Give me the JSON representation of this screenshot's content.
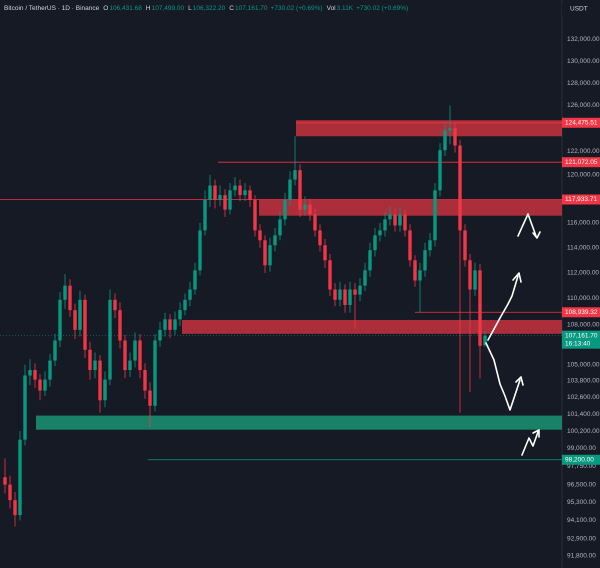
{
  "chart_data": {
    "type": "candlestick",
    "header": {
      "symbol": "Bitcoin / TetherUS · 1D · Binance",
      "ohlc": [
        [
          "O",
          "106,431.68"
        ],
        [
          "H",
          "107,499.00"
        ],
        [
          "L",
          "106,322.20"
        ],
        [
          "C",
          "107,161.70"
        ]
      ],
      "change": "+730.02 (+0.69%)",
      "volume_label": "Vol",
      "volume": "3.11K"
    },
    "currency": "USDT",
    "log_scale": true,
    "up_color": "#089981",
    "down_color": "#f23645",
    "ylim": [
      91000,
      134000
    ],
    "yticks": [
      {
        "value": 132000,
        "label": "132,000.00"
      },
      {
        "value": 130000,
        "label": "130,000.00"
      },
      {
        "value": 128000,
        "label": "128,000.00"
      },
      {
        "value": 126000,
        "label": "126,000.00"
      },
      {
        "value": 122000,
        "label": "122,000.00"
      },
      {
        "value": 120000,
        "label": "120,000.00"
      },
      {
        "value": 116000,
        "label": "116,000.00"
      },
      {
        "value": 114000,
        "label": "114,000.00"
      },
      {
        "value": 112000,
        "label": "112,000.00"
      },
      {
        "value": 110000,
        "label": "110,000.00"
      },
      {
        "value": 108000,
        "label": "108,000.00"
      },
      {
        "value": 105000,
        "label": "105,000.00"
      },
      {
        "value": 103800,
        "label": "103,800.00"
      },
      {
        "value": 102600,
        "label": "102,600.00"
      },
      {
        "value": 101400,
        "label": "101,400.00"
      },
      {
        "value": 100200,
        "label": "100,200.00"
      },
      {
        "value": 99000,
        "label": "99,000.00"
      },
      {
        "value": 97750,
        "label": "97,750.00"
      },
      {
        "value": 96500,
        "label": "96,500.00"
      },
      {
        "value": 95300,
        "label": "95,300.00"
      },
      {
        "value": 94100,
        "label": "94,100.00"
      },
      {
        "value": 92900,
        "label": "92,900.00"
      },
      {
        "value": 91800,
        "label": "91,800.00"
      }
    ],
    "zones": [
      {
        "low": 123300,
        "high": 124700,
        "color": "#b8303c"
      },
      {
        "low": 116600,
        "high": 117900,
        "color": "#b8303c"
      },
      {
        "low": 107300,
        "high": 108350,
        "color": "#b8303c"
      },
      {
        "low": 100300,
        "high": 101300,
        "color": "#1b8a6f"
      }
    ],
    "levels": [
      {
        "value": 124475.51,
        "label": "124,475.51",
        "color": "#f23645"
      },
      {
        "value": 121072.05,
        "label": "121,072.05",
        "color": "#f23645"
      },
      {
        "value": 117933.71,
        "label": "117,933.71",
        "color": "#f23645"
      },
      {
        "value": 108939.32,
        "label": "108,939.32",
        "color": "#f23645"
      },
      {
        "value": 107161.7,
        "label": "107,161.70",
        "color": "#089981",
        "countdown": "16:13:40"
      },
      {
        "value": 98200,
        "label": "98,200.00",
        "color": "#089981"
      }
    ],
    "candles": [
      [
        97000,
        98300,
        95900,
        96500
      ],
      [
        96500,
        97100,
        94900,
        95450
      ],
      [
        95450,
        96000,
        93700,
        94450
      ],
      [
        94450,
        100200,
        94100,
        99600
      ],
      [
        99600,
        105000,
        99200,
        104200
      ],
      [
        104200,
        105400,
        103500,
        104600
      ],
      [
        104600,
        105100,
        103300,
        103900
      ],
      [
        103900,
        104300,
        102400,
        103100
      ],
      [
        103100,
        104500,
        102700,
        103900
      ],
      [
        103900,
        105800,
        103400,
        105300
      ],
      [
        105300,
        107300,
        104900,
        106800
      ],
      [
        106800,
        110500,
        106300,
        109900
      ],
      [
        109900,
        111900,
        109200,
        111000
      ],
      [
        111000,
        111500,
        108600,
        109100
      ],
      [
        109100,
        109600,
        106900,
        107600
      ],
      [
        107600,
        110600,
        107100,
        109900
      ],
      [
        109900,
        110300,
        105500,
        106100
      ],
      [
        106100,
        106700,
        103900,
        104600
      ],
      [
        104600,
        105900,
        104000,
        105300
      ],
      [
        105300,
        105700,
        101500,
        102400
      ],
      [
        102400,
        104500,
        101900,
        103900
      ],
      [
        103900,
        110700,
        103500,
        109900
      ],
      [
        109900,
        110400,
        108500,
        109100
      ],
      [
        109100,
        109700,
        106200,
        106800
      ],
      [
        106800,
        107200,
        104000,
        104600
      ],
      [
        104600,
        105900,
        104100,
        105300
      ],
      [
        105300,
        107400,
        104800,
        106800
      ],
      [
        106800,
        107300,
        104000,
        104600
      ],
      [
        104600,
        105100,
        102500,
        103100
      ],
      [
        103100,
        103700,
        100500,
        102000
      ],
      [
        102000,
        107300,
        101600,
        106800
      ],
      [
        106800,
        108200,
        106300,
        107600
      ],
      [
        107600,
        108900,
        107100,
        108400
      ],
      [
        108400,
        108800,
        107000,
        107600
      ],
      [
        107600,
        109000,
        107200,
        108400
      ],
      [
        108400,
        109700,
        107900,
        109100
      ],
      [
        109100,
        110400,
        108700,
        109900
      ],
      [
        109900,
        111300,
        109400,
        110700
      ],
      [
        110700,
        112800,
        110300,
        112200
      ],
      [
        112200,
        116000,
        111800,
        115400
      ],
      [
        115400,
        118700,
        115000,
        117900
      ],
      [
        117900,
        120000,
        117300,
        119100
      ],
      [
        119100,
        119600,
        117200,
        117900
      ],
      [
        117900,
        119100,
        117400,
        118300
      ],
      [
        118300,
        118800,
        116500,
        117100
      ],
      [
        117100,
        119300,
        116700,
        118700
      ],
      [
        118700,
        119800,
        118200,
        119100
      ],
      [
        119100,
        119600,
        117800,
        118300
      ],
      [
        118300,
        119300,
        117800,
        118700
      ],
      [
        118700,
        119100,
        117300,
        117900
      ],
      [
        117900,
        118300,
        114900,
        115400
      ],
      [
        115400,
        115900,
        114000,
        114600
      ],
      [
        114600,
        115000,
        112000,
        112600
      ],
      [
        112600,
        114800,
        112100,
        114200
      ],
      [
        114200,
        115600,
        113700,
        115000
      ],
      [
        115000,
        116900,
        114600,
        116300
      ],
      [
        116300,
        118500,
        115800,
        117900
      ],
      [
        117900,
        120300,
        117400,
        119600
      ],
      [
        119600,
        123300,
        119100,
        120400
      ],
      [
        120400,
        120900,
        116500,
        117100
      ],
      [
        117100,
        118200,
        116600,
        117500
      ],
      [
        117500,
        118000,
        116200,
        116700
      ],
      [
        116700,
        117200,
        114900,
        115400
      ],
      [
        115400,
        115900,
        113700,
        114200
      ],
      [
        114200,
        114700,
        112400,
        113000
      ],
      [
        113000,
        113500,
        110200,
        110700
      ],
      [
        110700,
        111200,
        109400,
        109900
      ],
      [
        109900,
        111300,
        109400,
        110700
      ],
      [
        110700,
        111100,
        108900,
        109500
      ],
      [
        109500,
        111300,
        108900,
        110700
      ],
      [
        110700,
        111200,
        107700,
        110300
      ],
      [
        110300,
        111600,
        109800,
        111000
      ],
      [
        111000,
        112800,
        110600,
        112200
      ],
      [
        112200,
        114400,
        111700,
        113800
      ],
      [
        113800,
        115600,
        113300,
        115000
      ],
      [
        115000,
        116000,
        114500,
        115400
      ],
      [
        115400,
        116900,
        114900,
        116300
      ],
      [
        116300,
        117400,
        115800,
        116700
      ],
      [
        116700,
        117200,
        115300,
        115800
      ],
      [
        115800,
        117300,
        115300,
        116700
      ],
      [
        116700,
        117100,
        114900,
        115400
      ],
      [
        115400,
        115900,
        112500,
        113000
      ],
      [
        113000,
        113400,
        110900,
        111400
      ],
      [
        111400,
        112800,
        108900,
        112200
      ],
      [
        112200,
        114400,
        111700,
        113800
      ],
      [
        113800,
        115200,
        113300,
        114600
      ],
      [
        114600,
        119300,
        114100,
        118700
      ],
      [
        118700,
        122700,
        118200,
        122100
      ],
      [
        122100,
        124400,
        121600,
        123800
      ],
      [
        123800,
        126000,
        122600,
        124000
      ],
      [
        124000,
        124500,
        121900,
        122500
      ],
      [
        122500,
        123000,
        101500,
        115400
      ],
      [
        115400,
        115900,
        112500,
        113000
      ],
      [
        113000,
        113500,
        103000,
        110700
      ],
      [
        110700,
        112800,
        110200,
        112200
      ],
      [
        112200,
        112700,
        104000,
        106400
      ],
      [
        106431.68,
        107499,
        106322.2,
        107161.7
      ]
    ]
  }
}
